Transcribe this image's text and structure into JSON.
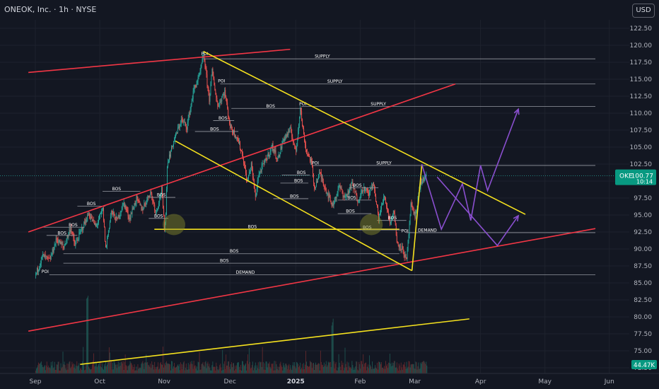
{
  "header": {
    "title": "ONEOK, Inc. · 1h · NYSE",
    "currency_button": "USD"
  },
  "chart_data": {
    "type": "candlestick",
    "title": "ONEOK, Inc. · 1h · NYSE",
    "symbol": "OKE",
    "last_price": "100.77",
    "countdown": "10:14",
    "volume_label": "44.47K",
    "ylim": [
      72.5,
      124
    ],
    "y_ticks": [
      "122.50",
      "120.00",
      "117.50",
      "115.00",
      "112.50",
      "110.00",
      "107.50",
      "105.00",
      "102.50",
      "100.00",
      "97.50",
      "95.00",
      "92.50",
      "90.00",
      "87.50",
      "85.00",
      "82.50",
      "80.00",
      "77.50",
      "75.00",
      "72.50"
    ],
    "x_ticks": [
      "Sep",
      "Oct",
      "Nov",
      "Dec",
      "2025",
      "Feb",
      "Mar",
      "Apr",
      "May",
      "Jun"
    ],
    "x_tick_index": [
      0,
      46,
      92,
      139,
      186,
      232,
      271,
      318,
      364,
      410
    ],
    "price_path": [
      [
        0,
        86.2
      ],
      [
        5,
        89
      ],
      [
        10,
        88.3
      ],
      [
        15,
        91.5
      ],
      [
        20,
        90.2
      ],
      [
        25,
        93.2
      ],
      [
        28,
        90.5
      ],
      [
        32,
        92.5
      ],
      [
        38,
        95.2
      ],
      [
        43,
        93.3
      ],
      [
        48,
        95.8
      ],
      [
        50,
        90
      ],
      [
        54,
        95.5
      ],
      [
        58,
        94.2
      ],
      [
        63,
        96.8
      ],
      [
        67,
        94.5
      ],
      [
        72,
        97.4
      ],
      [
        76,
        95.8
      ],
      [
        82,
        98.4
      ],
      [
        86,
        95.4
      ],
      [
        90,
        98.7
      ],
      [
        92,
        93.2
      ],
      [
        93,
        95
      ],
      [
        94,
        102.5
      ],
      [
        98,
        105.5
      ],
      [
        104,
        109
      ],
      [
        108,
        108
      ],
      [
        113,
        113.5
      ],
      [
        117,
        115.5
      ],
      [
        120,
        118.7
      ],
      [
        124,
        112
      ],
      [
        126,
        116.2
      ],
      [
        130,
        111
      ],
      [
        135,
        113.2
      ],
      [
        139,
        108
      ],
      [
        144,
        106.4
      ],
      [
        148,
        103.6
      ],
      [
        151,
        99.8
      ],
      [
        154,
        102.5
      ],
      [
        157,
        97.5
      ],
      [
        159,
        100.8
      ],
      [
        164,
        103
      ],
      [
        169,
        105.1
      ],
      [
        173,
        103.2
      ],
      [
        177,
        106.2
      ],
      [
        182,
        107.5
      ],
      [
        186,
        104.3
      ],
      [
        189,
        110.9
      ],
      [
        191,
        107.5
      ],
      [
        193,
        104.7
      ],
      [
        197,
        102.7
      ],
      [
        199,
        99
      ],
      [
        203,
        101.2
      ],
      [
        207,
        98.9
      ],
      [
        212,
        96.4
      ],
      [
        217,
        99.2
      ],
      [
        221,
        97.5
      ],
      [
        226,
        99.6
      ],
      [
        230,
        97.1
      ],
      [
        234,
        99
      ],
      [
        238,
        98.1
      ],
      [
        241,
        99.8
      ],
      [
        245,
        94.5
      ],
      [
        249,
        97.9
      ],
      [
        253,
        94
      ],
      [
        256,
        95.5
      ],
      [
        258,
        91
      ],
      [
        262,
        90
      ],
      [
        265,
        88.2
      ],
      [
        268,
        96.3
      ],
      [
        271,
        94.8
      ],
      [
        275,
        99.8
      ],
      [
        279,
        100.77
      ]
    ],
    "annotations": [
      {
        "label": "SUPPLY",
        "y": 118.0,
        "x_from": 120,
        "x_to": 400,
        "label_x": 205,
        "style": "solid"
      },
      {
        "label": "SUPPLY",
        "y": 114.3,
        "x_from": 132,
        "x_to": 400,
        "label_x": 214,
        "style": "solid"
      },
      {
        "label": "SUPPLY",
        "y": 111.0,
        "x_from": 190,
        "x_to": 400,
        "label_x": 245,
        "style": "solid"
      },
      {
        "label": "SUPPLY",
        "y": 102.3,
        "x_from": 198,
        "x_to": 400,
        "label_x": 249,
        "style": "solid"
      },
      {
        "label": "POI",
        "y": 118.4,
        "x_from": 118,
        "x_to": 125,
        "label_x": 121,
        "style": "none"
      },
      {
        "label": "POI",
        "y": 114.4,
        "x_from": 130,
        "x_to": 138,
        "label_x": 133,
        "style": "none"
      },
      {
        "label": "POI",
        "y": 111.0,
        "x_from": 188,
        "x_to": 196,
        "label_x": 191,
        "style": "none"
      },
      {
        "label": "POI",
        "y": 102.3,
        "x_from": 198,
        "x_to": 205,
        "label_x": 200,
        "style": "none"
      },
      {
        "label": "POI",
        "y": 92.3,
        "x_from": 261,
        "x_to": 268,
        "label_x": 264,
        "style": "none"
      },
      {
        "label": "POI",
        "y": 86.3,
        "x_from": 4,
        "x_to": 12,
        "label_x": 7,
        "style": "none"
      },
      {
        "label": "DEMAND",
        "y": 92.4,
        "x_from": 265,
        "x_to": 400,
        "label_x": 280,
        "style": "solid"
      },
      {
        "label": "DEMAND",
        "y": 86.2,
        "x_from": 10,
        "x_to": 400,
        "label_x": 150,
        "style": "solid"
      },
      {
        "label": "BOS",
        "y": 92.9,
        "x_from": 85,
        "x_to": 260,
        "label_x": 155,
        "style": "yellow"
      },
      {
        "label": "BOS",
        "y": 89.3,
        "x_from": 20,
        "x_to": 260,
        "label_x": 142,
        "style": "solid"
      },
      {
        "label": "BOS",
        "y": 87.9,
        "x_from": 20,
        "x_to": 260,
        "label_x": 135,
        "style": "solid"
      },
      {
        "label": "BOS",
        "y": 110.7,
        "x_from": 140,
        "x_to": 190,
        "label_x": 168,
        "style": "solid"
      },
      {
        "label": "BOS",
        "y": 107.3,
        "x_from": 114,
        "x_to": 145,
        "label_x": 128,
        "style": "solid"
      },
      {
        "label": "BOS",
        "y": 108.9,
        "x_from": 127,
        "x_to": 142,
        "label_x": 134,
        "style": "solid"
      },
      {
        "label": "BOS",
        "y": 100.9,
        "x_from": 176,
        "x_to": 196,
        "label_x": 190,
        "style": "solid"
      },
      {
        "label": "BOS",
        "y": 99.7,
        "x_from": 175,
        "x_to": 195,
        "label_x": 188,
        "style": "solid"
      },
      {
        "label": "BOS",
        "y": 97.4,
        "x_from": 170,
        "x_to": 195,
        "label_x": 185,
        "style": "solid"
      },
      {
        "label": "BOS",
        "y": 95.2,
        "x_from": 216,
        "x_to": 240,
        "label_x": 225,
        "style": "solid"
      },
      {
        "label": "BOS",
        "y": 97.2,
        "x_from": 216,
        "x_to": 240,
        "label_x": 226,
        "style": "solid"
      },
      {
        "label": "BOS",
        "y": 99.0,
        "x_from": 224,
        "x_to": 245,
        "label_x": 230,
        "style": "solid"
      },
      {
        "label": "BOS",
        "y": 98.5,
        "x_from": 48,
        "x_to": 75,
        "label_x": 58,
        "style": "solid"
      },
      {
        "label": "BOS",
        "y": 97.6,
        "x_from": 82,
        "x_to": 100,
        "label_x": 90,
        "style": "solid"
      },
      {
        "label": "BOS",
        "y": 94.5,
        "x_from": 81,
        "x_to": 95,
        "label_x": 88,
        "style": "solid"
      },
      {
        "label": "BOS",
        "y": 96.3,
        "x_from": 30,
        "x_to": 50,
        "label_x": 40,
        "style": "solid"
      },
      {
        "label": "BOS",
        "y": 93.2,
        "x_from": 5,
        "x_to": 35,
        "label_x": 27,
        "style": "solid"
      },
      {
        "label": "BOS",
        "y": 92.0,
        "x_from": 8,
        "x_to": 30,
        "label_x": 19,
        "style": "solid"
      },
      {
        "label": "BOS",
        "y": 92.8,
        "x_from": 230,
        "x_to": 262,
        "label_x": 237,
        "style": "solid"
      },
      {
        "label": "BOS",
        "y": 94.2,
        "x_from": 244,
        "x_to": 265,
        "label_x": 255,
        "style": "solid"
      }
    ],
    "trendlines": [
      {
        "color": "#f23645",
        "from": [
          -5,
          116
        ],
        "to": [
          182,
          119.4
        ]
      },
      {
        "color": "#f23645",
        "from": [
          -5,
          92.5
        ],
        "to": [
          300,
          114.3
        ]
      },
      {
        "color": "#f23645",
        "from": [
          -5,
          77.9
        ],
        "to": [
          400,
          93.0
        ]
      },
      {
        "color": "#f5e11e",
        "from": [
          120,
          119.1
        ],
        "to": [
          350,
          95.1
        ]
      },
      {
        "color": "#f5e11e",
        "from": [
          100,
          105.9
        ],
        "to": [
          269,
          86.8
        ]
      },
      {
        "color": "#f5e11e",
        "from": [
          269,
          86.8
        ],
        "to": [
          276,
          102.3
        ]
      },
      {
        "color": "#f5e11e",
        "from": [
          32,
          73.0
        ],
        "to": [
          310,
          79.7
        ]
      }
    ],
    "projection": {
      "color": "#8a4fcf",
      "points": [
        [
          276,
          102.5
        ],
        [
          290,
          92.9
        ],
        [
          305,
          99.6
        ],
        [
          311,
          94.2
        ],
        [
          318,
          102.3
        ],
        [
          323,
          98.6
        ],
        [
          345,
          110.6
        ]
      ]
    },
    "projection_2": {
      "color": "#8a4fcf",
      "points": [
        [
          287,
          100.6
        ],
        [
          330,
          90.5
        ],
        [
          345,
          94.9
        ]
      ]
    },
    "highlights": [
      {
        "x": 99,
        "y": 93.6
      },
      {
        "x": 240,
        "y": 93.6
      }
    ],
    "colors": {
      "up": "#26a69a",
      "down": "#ef5350",
      "background": "#131722",
      "grid": "#1e222d",
      "axis_text": "#b2b5be",
      "annotation_text": "#ffffff"
    }
  }
}
